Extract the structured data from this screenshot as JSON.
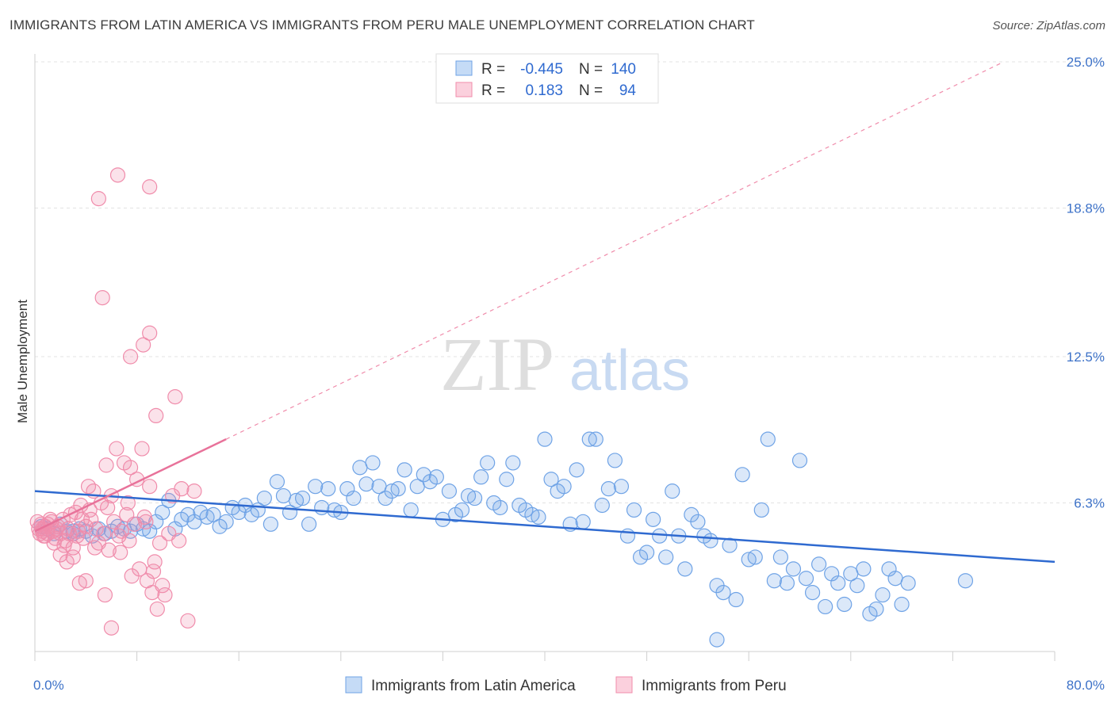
{
  "title": "IMMIGRANTS FROM LATIN AMERICA VS IMMIGRANTS FROM PERU MALE UNEMPLOYMENT CORRELATION CHART",
  "source": "Source: ZipAtlas.com",
  "watermark": {
    "zip": "ZIP",
    "atlas": "atlas"
  },
  "legend": {
    "r_label": "R =",
    "n_label": "N =",
    "rows": [
      {
        "r": "-0.445",
        "n": "140",
        "color": "#6fa3e6"
      },
      {
        "r": "0.183",
        "n": "94",
        "color": "#f08cab"
      }
    ]
  },
  "chart_data": {
    "type": "scatter",
    "title": "IMMIGRANTS FROM LATIN AMERICA VS IMMIGRANTS FROM PERU MALE UNEMPLOYMENT CORRELATION CHART",
    "xlabel": "",
    "ylabel": "Male Unemployment",
    "xlim": [
      0,
      80
    ],
    "ylim": [
      0,
      25
    ],
    "x_tick_labels": [
      "0.0%",
      "80.0%"
    ],
    "y_ticks": [
      6.3,
      12.5,
      18.8,
      25.0
    ],
    "y_tick_labels": [
      "6.3%",
      "12.5%",
      "18.8%",
      "25.0%"
    ],
    "grid": "horizontal-dashed",
    "legend_position": "bottom",
    "series": [
      {
        "name": "Immigrants from Latin America",
        "color": "#6fa3e6",
        "trend": {
          "x0": 0,
          "y0": 6.8,
          "x1": 80,
          "y1": 3.8
        },
        "points": [
          [
            0.5,
            5.3
          ],
          [
            1.0,
            5.2
          ],
          [
            1.5,
            5.0
          ],
          [
            2.0,
            5.4
          ],
          [
            2.5,
            5.1
          ],
          [
            3.0,
            5.0
          ],
          [
            3.5,
            5.2
          ],
          [
            4.0,
            5.1
          ],
          [
            4.5,
            4.9
          ],
          [
            5.0,
            5.2
          ],
          [
            5.5,
            5.0
          ],
          [
            6.0,
            5.1
          ],
          [
            6.5,
            5.3
          ],
          [
            7.0,
            5.2
          ],
          [
            7.5,
            5.1
          ],
          [
            8.0,
            5.4
          ],
          [
            8.5,
            5.2
          ],
          [
            9.0,
            5.1
          ],
          [
            9.5,
            5.5
          ],
          [
            10.0,
            5.9
          ],
          [
            10.5,
            6.4
          ],
          [
            11.0,
            5.2
          ],
          [
            11.5,
            5.6
          ],
          [
            12.0,
            5.8
          ],
          [
            12.5,
            5.5
          ],
          [
            13.0,
            5.9
          ],
          [
            13.5,
            5.7
          ],
          [
            14.0,
            5.8
          ],
          [
            14.5,
            5.3
          ],
          [
            15.0,
            5.5
          ],
          [
            15.5,
            6.1
          ],
          [
            16.0,
            5.9
          ],
          [
            16.5,
            6.2
          ],
          [
            17.0,
            5.8
          ],
          [
            17.5,
            6.0
          ],
          [
            18.0,
            6.5
          ],
          [
            18.5,
            5.4
          ],
          [
            19.0,
            7.2
          ],
          [
            19.5,
            6.6
          ],
          [
            20.0,
            5.9
          ],
          [
            20.5,
            6.4
          ],
          [
            21.0,
            6.5
          ],
          [
            21.5,
            5.4
          ],
          [
            22.0,
            7.0
          ],
          [
            22.5,
            6.1
          ],
          [
            23.0,
            6.9
          ],
          [
            23.5,
            6.0
          ],
          [
            24.0,
            5.9
          ],
          [
            24.5,
            6.9
          ],
          [
            25.0,
            6.5
          ],
          [
            25.5,
            7.8
          ],
          [
            26.0,
            7.1
          ],
          [
            26.5,
            8.0
          ],
          [
            27.0,
            7.0
          ],
          [
            27.5,
            6.5
          ],
          [
            28.0,
            6.8
          ],
          [
            28.5,
            6.9
          ],
          [
            29.0,
            7.7
          ],
          [
            29.5,
            6.0
          ],
          [
            30.0,
            7.0
          ],
          [
            30.5,
            7.5
          ],
          [
            31.0,
            7.2
          ],
          [
            31.5,
            7.4
          ],
          [
            32.0,
            5.6
          ],
          [
            32.5,
            6.8
          ],
          [
            33.0,
            5.8
          ],
          [
            33.5,
            6.0
          ],
          [
            34.0,
            6.6
          ],
          [
            34.5,
            6.5
          ],
          [
            35.0,
            7.4
          ],
          [
            35.5,
            8.0
          ],
          [
            36.0,
            6.3
          ],
          [
            36.5,
            6.1
          ],
          [
            37.0,
            7.3
          ],
          [
            37.5,
            8.0
          ],
          [
            38.0,
            6.2
          ],
          [
            38.5,
            6.0
          ],
          [
            39.0,
            5.8
          ],
          [
            39.5,
            5.7
          ],
          [
            40.0,
            9.0
          ],
          [
            40.5,
            7.3
          ],
          [
            41.0,
            6.8
          ],
          [
            41.5,
            7.0
          ],
          [
            42.0,
            5.4
          ],
          [
            42.5,
            7.7
          ],
          [
            43.0,
            5.5
          ],
          [
            43.5,
            9.0
          ],
          [
            44.0,
            9.0
          ],
          [
            44.5,
            6.2
          ],
          [
            45.0,
            6.9
          ],
          [
            45.5,
            8.1
          ],
          [
            46.0,
            7.0
          ],
          [
            46.5,
            4.9
          ],
          [
            47.0,
            6.0
          ],
          [
            47.5,
            4.0
          ],
          [
            48.0,
            4.2
          ],
          [
            48.5,
            5.6
          ],
          [
            49.0,
            4.9
          ],
          [
            49.5,
            4.0
          ],
          [
            50.0,
            6.8
          ],
          [
            50.5,
            4.9
          ],
          [
            51.0,
            3.5
          ],
          [
            51.5,
            5.8
          ],
          [
            52.0,
            5.5
          ],
          [
            52.5,
            4.9
          ],
          [
            53.0,
            4.7
          ],
          [
            53.5,
            2.8
          ],
          [
            54.0,
            2.5
          ],
          [
            54.5,
            4.5
          ],
          [
            55.0,
            2.2
          ],
          [
            55.5,
            7.5
          ],
          [
            56.0,
            3.9
          ],
          [
            56.5,
            4.0
          ],
          [
            57.0,
            6.0
          ],
          [
            57.5,
            9.0
          ],
          [
            58.0,
            3.0
          ],
          [
            58.5,
            4.0
          ],
          [
            59.0,
            2.9
          ],
          [
            59.5,
            3.5
          ],
          [
            60.0,
            8.1
          ],
          [
            60.5,
            3.1
          ],
          [
            61.0,
            2.5
          ],
          [
            61.5,
            3.7
          ],
          [
            62.0,
            1.9
          ],
          [
            62.5,
            3.3
          ],
          [
            63.0,
            2.9
          ],
          [
            63.5,
            2.0
          ],
          [
            64.0,
            3.3
          ],
          [
            64.5,
            2.8
          ],
          [
            65.0,
            3.5
          ],
          [
            65.5,
            1.6
          ],
          [
            66.0,
            1.8
          ],
          [
            66.5,
            2.4
          ],
          [
            67.0,
            3.5
          ],
          [
            67.5,
            3.1
          ],
          [
            68.0,
            2.0
          ],
          [
            68.5,
            2.9
          ],
          [
            73.0,
            3.0
          ],
          [
            53.5,
            0.5
          ],
          [
            3.0,
            5.1
          ]
        ]
      },
      {
        "name": "Immigrants from Peru",
        "color": "#f08cab",
        "trend": {
          "x0": 0,
          "y0": 5.1,
          "x1": 15,
          "y1": 9.0,
          "dashed_to": {
            "x": 76,
            "y": 25.0
          }
        },
        "points": [
          [
            0.2,
            5.5
          ],
          [
            0.4,
            5.0
          ],
          [
            0.6,
            5.2
          ],
          [
            0.8,
            4.9
          ],
          [
            1.0,
            5.4
          ],
          [
            1.2,
            5.6
          ],
          [
            1.4,
            5.1
          ],
          [
            1.6,
            4.8
          ],
          [
            1.8,
            5.3
          ],
          [
            2.0,
            5.0
          ],
          [
            2.2,
            5.6
          ],
          [
            2.4,
            4.7
          ],
          [
            2.6,
            5.2
          ],
          [
            2.8,
            5.8
          ],
          [
            3.0,
            4.4
          ],
          [
            3.2,
            5.9
          ],
          [
            3.4,
            5.1
          ],
          [
            3.6,
            6.2
          ],
          [
            3.8,
            4.8
          ],
          [
            4.0,
            5.3
          ],
          [
            4.2,
            7.0
          ],
          [
            4.4,
            5.6
          ],
          [
            4.6,
            6.8
          ],
          [
            4.8,
            5.2
          ],
          [
            5.0,
            4.6
          ],
          [
            5.2,
            6.3
          ],
          [
            5.4,
            5.0
          ],
          [
            5.6,
            7.9
          ],
          [
            5.8,
            4.3
          ],
          [
            6.0,
            6.6
          ],
          [
            6.2,
            5.5
          ],
          [
            6.4,
            8.6
          ],
          [
            6.6,
            4.9
          ],
          [
            6.8,
            5.1
          ],
          [
            7.0,
            8.0
          ],
          [
            7.2,
            5.8
          ],
          [
            7.4,
            4.7
          ],
          [
            7.6,
            3.2
          ],
          [
            7.8,
            5.4
          ],
          [
            8.0,
            7.3
          ],
          [
            8.2,
            3.5
          ],
          [
            8.4,
            8.6
          ],
          [
            8.6,
            5.7
          ],
          [
            8.8,
            3.0
          ],
          [
            9.0,
            7.0
          ],
          [
            9.2,
            2.5
          ],
          [
            9.4,
            3.8
          ],
          [
            9.6,
            1.8
          ],
          [
            9.8,
            4.6
          ],
          [
            10.0,
            2.8
          ],
          [
            5.0,
            19.2
          ],
          [
            6.5,
            20.2
          ],
          [
            9.0,
            19.7
          ],
          [
            5.3,
            15.0
          ],
          [
            7.5,
            12.5
          ],
          [
            9.0,
            13.5
          ],
          [
            8.5,
            13.0
          ],
          [
            9.5,
            10.0
          ],
          [
            11.0,
            10.8
          ],
          [
            7.5,
            7.8
          ],
          [
            10.5,
            5.0
          ],
          [
            11.5,
            6.9
          ],
          [
            12.0,
            1.3
          ],
          [
            6.0,
            1.0
          ],
          [
            5.5,
            2.4
          ],
          [
            4.0,
            3.0
          ],
          [
            3.5,
            2.9
          ],
          [
            3.0,
            4.0
          ],
          [
            2.5,
            3.8
          ],
          [
            2.0,
            4.1
          ],
          [
            1.5,
            4.6
          ],
          [
            1.0,
            5.0
          ],
          [
            0.8,
            5.3
          ],
          [
            0.6,
            5.1
          ],
          [
            0.5,
            5.4
          ],
          [
            0.3,
            5.2
          ],
          [
            0.7,
            4.9
          ],
          [
            1.3,
            5.5
          ],
          [
            1.7,
            5.2
          ],
          [
            2.3,
            4.5
          ],
          [
            2.7,
            5.0
          ],
          [
            3.3,
            4.9
          ],
          [
            3.7,
            5.6
          ],
          [
            4.3,
            6.0
          ],
          [
            4.7,
            4.4
          ],
          [
            5.7,
            6.1
          ],
          [
            6.7,
            4.2
          ],
          [
            7.3,
            6.3
          ],
          [
            8.7,
            5.5
          ],
          [
            9.3,
            3.4
          ],
          [
            10.2,
            2.4
          ],
          [
            10.8,
            6.6
          ],
          [
            11.3,
            4.7
          ],
          [
            12.5,
            6.8
          ]
        ]
      }
    ]
  },
  "bottom_legend": {
    "items": [
      {
        "label": "Immigrants from Latin America",
        "color": "#6fa3e6"
      },
      {
        "label": "Immigrants from Peru",
        "color": "#f08cab"
      }
    ]
  }
}
